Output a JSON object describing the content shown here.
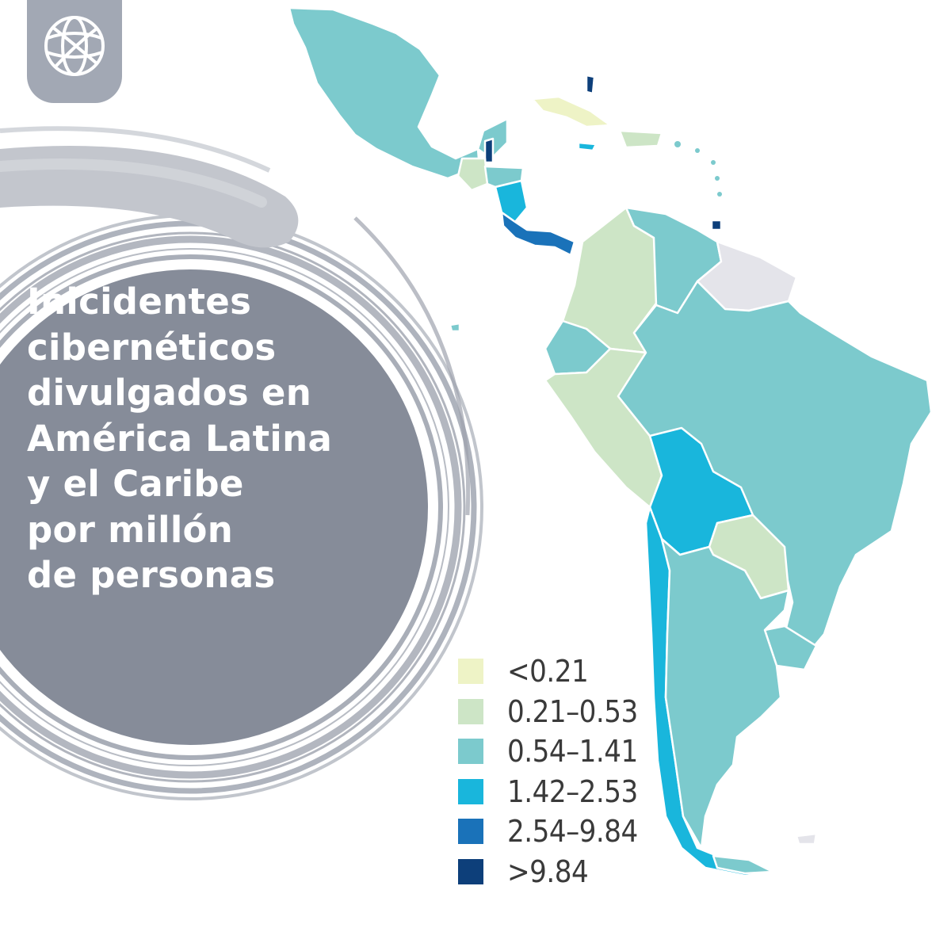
{
  "headline": {
    "lines": [
      "Inicidentes",
      "cibernéticos",
      "divulgados en",
      "América Latina",
      "y el Caribe",
      "por millón",
      "de personas"
    ]
  },
  "logo": {
    "icon": "globe-icon",
    "color": "#ffffff",
    "tab_color": "#a2a8b4"
  },
  "legend": {
    "items": [
      {
        "label": "<0.21",
        "color": "#eef3c6"
      },
      {
        "label": "0.21–0.53",
        "color": "#cde5c6"
      },
      {
        "label": "0.54–1.41",
        "color": "#7ccacd"
      },
      {
        "label": "1.42–2.53",
        "color": "#19b6dc"
      },
      {
        "label": "2.54–9.84",
        "color": "#1a72b9"
      },
      {
        "label": ">9.84",
        "color": "#0d3f7a"
      }
    ],
    "no_data_color": "#e4e4ea"
  },
  "colors": {
    "circle_fill": "#868c99",
    "ring": "#a7acb7",
    "border": "#ffffff"
  }
}
